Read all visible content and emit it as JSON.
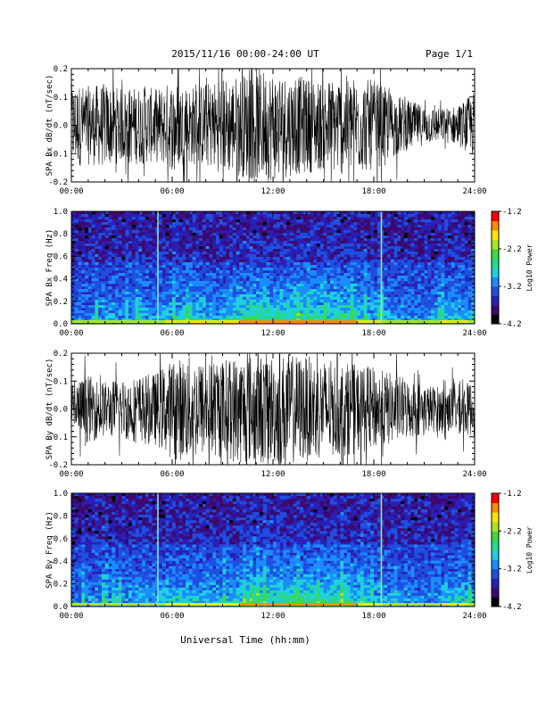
{
  "header": {
    "date_range": "2015/11/16  00:00-24:00 UT",
    "page": "Page 1/1"
  },
  "xlabel": "Universal Time (hh:mm)",
  "chart_data": [
    {
      "type": "line",
      "ylabel": "SPA Bx dB/dt (nT/sec)",
      "ylim": [
        -0.2,
        0.2
      ],
      "yticks": [
        "0.2",
        "0.1",
        "0.0",
        "-0.1",
        "-0.2"
      ],
      "xticks": [
        "00:00",
        "06:00",
        "12:00",
        "18:00",
        "24:00"
      ],
      "xlim_hours": [
        0,
        24
      ],
      "series": [
        {
          "color": "#000000",
          "envelope": {
            "hours": [
              0,
              1,
              2,
              3,
              4,
              5,
              6,
              7,
              8,
              9,
              10,
              11,
              12,
              13,
              14,
              15,
              16,
              17,
              18,
              19,
              20,
              21,
              22,
              23,
              24
            ],
            "amplitude": [
              0.15,
              0.14,
              0.15,
              0.13,
              0.14,
              0.13,
              0.16,
              0.14,
              0.15,
              0.17,
              0.18,
              0.2,
              0.2,
              0.18,
              0.17,
              0.16,
              0.18,
              0.17,
              0.16,
              0.12,
              0.09,
              0.07,
              0.06,
              0.07,
              0.12
            ]
          }
        }
      ]
    },
    {
      "type": "heatmap",
      "ylabel": "SPA Bx Freq (Hz)",
      "ylim": [
        0.0,
        1.0
      ],
      "yticks": [
        "1.0",
        "0.8",
        "0.6",
        "0.4",
        "0.2",
        "0.0"
      ],
      "xticks": [
        "00:00",
        "06:00",
        "12:00",
        "18:00",
        "24:00"
      ],
      "xlim_hours": [
        0,
        24
      ],
      "colorbar": {
        "label": "Log10 Power",
        "ticks": [
          "-1.2",
          "-2.2",
          "-3.2",
          "-4.2"
        ],
        "range": [
          -4.2,
          -1.2
        ]
      },
      "colormap": [
        "#000000",
        "#3c0a6e",
        "#2a1fb4",
        "#1f4fe0",
        "#1a8cff",
        "#1fd0e0",
        "#27d88c",
        "#3cdc3c",
        "#a8e61e",
        "#ffe600",
        "#ff8c00",
        "#ff0000"
      ],
      "lines_hours": [
        5.15,
        18.45
      ]
    },
    {
      "type": "line",
      "ylabel": "SPA By dB/dt (nT/sec)",
      "ylim": [
        -0.2,
        0.2
      ],
      "yticks": [
        "0.2",
        "0.1",
        "0.0",
        "-0.1",
        "-0.2"
      ],
      "xticks": [
        "00:00",
        "06:00",
        "12:00",
        "18:00",
        "24:00"
      ],
      "xlim_hours": [
        0,
        24
      ],
      "series": [
        {
          "color": "#000000",
          "envelope": {
            "hours": [
              0,
              1,
              2,
              3,
              4,
              5,
              6,
              7,
              8,
              9,
              10,
              11,
              12,
              13,
              14,
              15,
              16,
              17,
              18,
              19,
              20,
              21,
              22,
              23,
              24
            ],
            "amplitude": [
              0.1,
              0.12,
              0.1,
              0.11,
              0.12,
              0.13,
              0.18,
              0.19,
              0.17,
              0.18,
              0.2,
              0.2,
              0.2,
              0.2,
              0.19,
              0.18,
              0.17,
              0.16,
              0.15,
              0.13,
              0.11,
              0.09,
              0.08,
              0.09,
              0.1
            ]
          }
        }
      ]
    },
    {
      "type": "heatmap",
      "ylabel": "SPA By Freq (Hz)",
      "ylim": [
        0.0,
        1.0
      ],
      "yticks": [
        "1.0",
        "0.8",
        "0.6",
        "0.4",
        "0.2",
        "0.0"
      ],
      "xticks": [
        "00:00",
        "06:00",
        "12:00",
        "18:00",
        "24:00"
      ],
      "xlim_hours": [
        0,
        24
      ],
      "colorbar": {
        "label": "Log10 Power",
        "ticks": [
          "-1.2",
          "-2.2",
          "-3.2",
          "-4.2"
        ],
        "range": [
          -4.2,
          -1.2
        ]
      },
      "colormap": [
        "#000000",
        "#3c0a6e",
        "#2a1fb4",
        "#1f4fe0",
        "#1a8cff",
        "#1fd0e0",
        "#27d88c",
        "#3cdc3c",
        "#a8e61e",
        "#ffe600",
        "#ff8c00",
        "#ff0000"
      ],
      "lines_hours": [
        5.15,
        18.45
      ]
    }
  ]
}
